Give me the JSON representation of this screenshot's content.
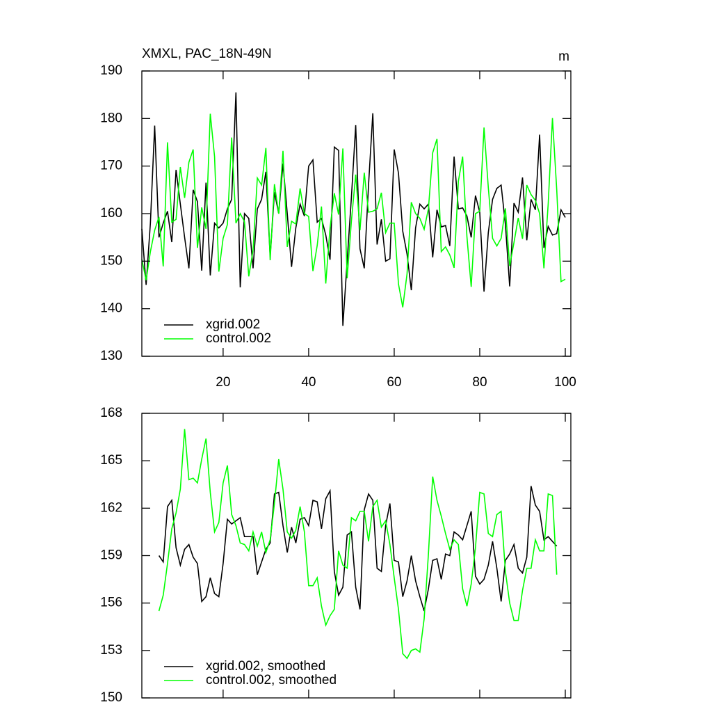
{
  "chart_data": [
    {
      "type": "line",
      "title": "XMXL, PAC_18N-49N",
      "units": "m",
      "x": [
        1,
        2,
        3,
        4,
        5,
        6,
        7,
        8,
        9,
        10,
        11,
        12,
        13,
        14,
        15,
        16,
        17,
        18,
        19,
        20,
        21,
        22,
        23,
        24,
        25,
        26,
        27,
        28,
        29,
        30,
        31,
        32,
        33,
        34,
        35,
        36,
        37,
        38,
        39,
        40,
        41,
        42,
        43,
        44,
        45,
        46,
        47,
        48,
        49,
        50,
        51,
        52,
        53,
        54,
        55,
        56,
        57,
        58,
        59,
        60,
        61,
        62,
        63,
        64,
        65,
        66,
        67,
        68,
        69,
        70,
        71,
        72,
        73,
        74,
        75,
        76,
        77,
        78,
        79,
        80,
        81,
        82,
        83,
        84,
        85,
        86,
        87,
        88,
        89,
        90,
        91,
        92,
        93,
        94,
        95,
        96,
        97,
        98,
        99,
        100
      ],
      "series": [
        {
          "name": "xgrid.002",
          "color": "#000000",
          "values": [
            156.8,
            145,
            158,
            178.5,
            155,
            158,
            160.5,
            154,
            169.2,
            162,
            155,
            148.5,
            165,
            162.5,
            148,
            166.5,
            147,
            158,
            157,
            158,
            161,
            163,
            185.5,
            144.5,
            160,
            159,
            148.5,
            161,
            163,
            168.8,
            151,
            164.5,
            160,
            170.5,
            160,
            148.8,
            157,
            162,
            159.5,
            170,
            171.3,
            158.2,
            159,
            155.5,
            150.3,
            174,
            173.3,
            136.4,
            150,
            163.5,
            178.6,
            152.6,
            148.5,
            166,
            181.1,
            153.5,
            158.8,
            150,
            150.5,
            173.5,
            168.5,
            156.3,
            151.5,
            143.9,
            157,
            162,
            161,
            162,
            150.8,
            160.8,
            157.2,
            157.5,
            153.2,
            172,
            161,
            161.2,
            159.5,
            155,
            163.8,
            160.3,
            143.6,
            156,
            163,
            165.3,
            166,
            157.7,
            144.7,
            162.2,
            160.3,
            167.6,
            154.4,
            163,
            160.8,
            176.6,
            152.8,
            157.3,
            155.5,
            155.8,
            160.8,
            159.2
          ]
        },
        {
          "name": "control.002",
          "color": "#00ff00",
          "values": [
            150.4,
            146,
            152,
            156.5,
            159.3,
            148.9,
            175,
            158.2,
            158.8,
            169.8,
            163.3,
            170.8,
            173.5,
            152.8,
            161.3,
            156.8,
            181,
            172,
            147.8,
            154.8,
            157.7,
            176,
            158,
            160,
            158.3,
            146.8,
            152.3,
            167.5,
            166,
            173.8,
            150.2,
            166.2,
            160,
            173.2,
            153,
            158.4,
            157.8,
            165.3,
            160,
            159.4,
            147.9,
            153.3,
            161.5,
            145.3,
            157,
            164.3,
            159.8,
            173.7,
            146.4,
            158.5,
            168.2,
            156.5,
            168.6,
            160.3,
            160.5,
            161,
            164.4,
            156,
            158,
            158,
            145.2,
            140.3,
            147.3,
            162.4,
            160,
            159,
            156.7,
            161,
            172.8,
            175.7,
            152,
            153,
            151.3,
            148.6,
            166.8,
            172,
            155.2,
            144.6,
            160,
            160.5,
            178.1,
            165.5,
            154.8,
            153.2,
            154.8,
            161.1,
            149,
            153.9,
            159.1,
            154.7,
            166,
            164,
            162.8,
            160,
            148.5,
            162,
            180.1,
            165,
            145.7,
            146.2
          ]
        }
      ],
      "xlim": [
        1,
        101.3
      ],
      "ylim": [
        130,
        190
      ],
      "xticks": [
        20,
        40,
        60,
        80,
        100
      ],
      "yticks": [
        130,
        140,
        150,
        160,
        170,
        180,
        190
      ],
      "show_xtick_labels": true,
      "legend": "lower left"
    },
    {
      "type": "line",
      "x": [
        5,
        6,
        7,
        8,
        9,
        10,
        11,
        12,
        13,
        14,
        15,
        16,
        17,
        18,
        19,
        20,
        21,
        22,
        23,
        24,
        25,
        26,
        27,
        28,
        29,
        30,
        31,
        32,
        33,
        34,
        35,
        36,
        37,
        38,
        39,
        40,
        41,
        42,
        43,
        44,
        45,
        46,
        47,
        48,
        49,
        50,
        51,
        52,
        53,
        54,
        55,
        56,
        57,
        58,
        59,
        60,
        61,
        62,
        63,
        64,
        65,
        66,
        67,
        68,
        69,
        70,
        71,
        72,
        73,
        74,
        75,
        76,
        77,
        78,
        79,
        80,
        81,
        82,
        83,
        84,
        85,
        86,
        87,
        88,
        89,
        90,
        91,
        92,
        93,
        94,
        95,
        96,
        97,
        98
      ],
      "series": [
        {
          "name": "xgrid.002, smoothed",
          "color": "#000000",
          "values": [
            159,
            158.6,
            162.1,
            162.5,
            159.5,
            158.4,
            159.4,
            159.7,
            158.9,
            158.5,
            156.1,
            156.4,
            157.6,
            156.6,
            156.4,
            158.5,
            161.3,
            161,
            161.2,
            161.4,
            160.2,
            160.2,
            160.2,
            157.8,
            158.6,
            159.4,
            159.8,
            162.9,
            163,
            160.9,
            159.2,
            160.8,
            159.8,
            161.3,
            161.4,
            160.9,
            162.5,
            162.4,
            160.7,
            162.6,
            163.1,
            158,
            156.5,
            157,
            160.3,
            160.5,
            157,
            155.6,
            161.9,
            162.9,
            162.5,
            158.2,
            158,
            160.9,
            162.3,
            158.7,
            158.6,
            156.4,
            157.4,
            159,
            157.4,
            156.4,
            155.5,
            156.9,
            158.7,
            158.8,
            157.5,
            159.1,
            159,
            160.5,
            160.3,
            160,
            160.9,
            161.8,
            157.7,
            157.2,
            157.5,
            158.4,
            159.9,
            158.2,
            156.1,
            158.7,
            159.1,
            159.7,
            158.2,
            157.9,
            158.9,
            163.4,
            162.2,
            161.8,
            160,
            160.2,
            159.9,
            159.6
          ]
        },
        {
          "name": "control.002, smoothed",
          "color": "#00ff00",
          "values": [
            155.5,
            156.5,
            158.5,
            160.7,
            161.7,
            163.2,
            167,
            163.8,
            163.9,
            163.6,
            165.1,
            166.4,
            163,
            160.5,
            161.1,
            163.6,
            164.7,
            161.6,
            160.9,
            159.8,
            159.7,
            159.3,
            160.5,
            159.6,
            160.5,
            159.2,
            160,
            162.3,
            165.1,
            163.2,
            160.5,
            160.1,
            160.6,
            162.1,
            160.5,
            157.1,
            157.1,
            157.6,
            155.8,
            154.6,
            155.2,
            155.6,
            159.3,
            158.4,
            158.2,
            161.4,
            161.2,
            161.8,
            161.8,
            159.9,
            162.1,
            162.5,
            160.8,
            161.2,
            159.7,
            157.6,
            155.6,
            152.8,
            152.5,
            153,
            153.1,
            152.9,
            155,
            159.1,
            164,
            162.5,
            161.5,
            160.4,
            159.4,
            160,
            159.7,
            156.9,
            155.8,
            157.2,
            159.5,
            163,
            162.9,
            160.4,
            160.2,
            161.6,
            161.8,
            158,
            156,
            154.9,
            154.9,
            156.8,
            158.2,
            158.2,
            160,
            159.3,
            159.3,
            162.9,
            162.8,
            157.8
          ]
        }
      ],
      "xlim": [
        1,
        101.3
      ],
      "ylim": [
        150,
        168
      ],
      "xticks": [
        20,
        40,
        60,
        80,
        100
      ],
      "yticks": [
        150,
        153,
        156,
        159,
        162,
        165,
        168
      ],
      "show_xtick_labels": false,
      "legend": "lower left"
    }
  ]
}
